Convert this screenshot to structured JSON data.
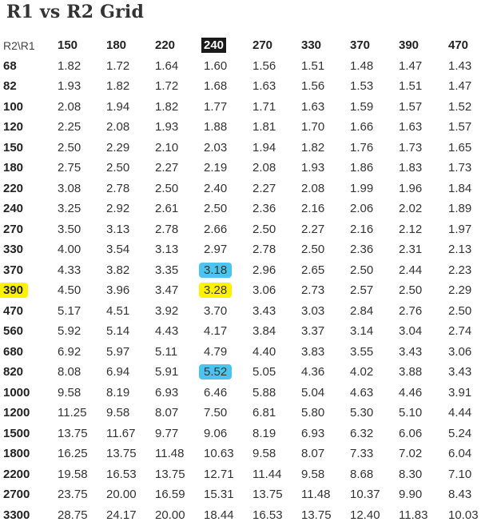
{
  "title": "R1 vs R2 Grid",
  "corner_label": "R2\\R1",
  "columns": [
    "150",
    "180",
    "220",
    "240",
    "270",
    "330",
    "370",
    "390",
    "470"
  ],
  "highlight_colors": {
    "black": "#1a1a1a",
    "yellow": "#fff200",
    "blue": "#4dc3f0"
  },
  "rows": [
    {
      "r2": "68",
      "values": [
        "1.82",
        "1.72",
        "1.64",
        "1.60",
        "1.56",
        "1.51",
        "1.48",
        "1.47",
        "1.43"
      ]
    },
    {
      "r2": "82",
      "values": [
        "1.93",
        "1.82",
        "1.72",
        "1.68",
        "1.63",
        "1.56",
        "1.53",
        "1.51",
        "1.47"
      ]
    },
    {
      "r2": "100",
      "values": [
        "2.08",
        "1.94",
        "1.82",
        "1.77",
        "1.71",
        "1.63",
        "1.59",
        "1.57",
        "1.52"
      ]
    },
    {
      "r2": "120",
      "values": [
        "2.25",
        "2.08",
        "1.93",
        "1.88",
        "1.81",
        "1.70",
        "1.66",
        "1.63",
        "1.57"
      ]
    },
    {
      "r2": "150",
      "values": [
        "2.50",
        "2.29",
        "2.10",
        "2.03",
        "1.94",
        "1.82",
        "1.76",
        "1.73",
        "1.65"
      ]
    },
    {
      "r2": "180",
      "values": [
        "2.75",
        "2.50",
        "2.27",
        "2.19",
        "2.08",
        "1.93",
        "1.86",
        "1.83",
        "1.73"
      ]
    },
    {
      "r2": "220",
      "values": [
        "3.08",
        "2.78",
        "2.50",
        "2.40",
        "2.27",
        "2.08",
        "1.99",
        "1.96",
        "1.84"
      ]
    },
    {
      "r2": "240",
      "values": [
        "3.25",
        "2.92",
        "2.61",
        "2.50",
        "2.36",
        "2.16",
        "2.06",
        "2.02",
        "1.89"
      ]
    },
    {
      "r2": "270",
      "values": [
        "3.50",
        "3.13",
        "2.78",
        "2.66",
        "2.50",
        "2.27",
        "2.16",
        "2.12",
        "1.97"
      ]
    },
    {
      "r2": "330",
      "values": [
        "4.00",
        "3.54",
        "3.13",
        "2.97",
        "2.78",
        "2.50",
        "2.36",
        "2.31",
        "2.13"
      ]
    },
    {
      "r2": "370",
      "values": [
        "4.33",
        "3.82",
        "3.35",
        "3.18",
        "2.96",
        "2.65",
        "2.50",
        "2.44",
        "2.23"
      ]
    },
    {
      "r2": "390",
      "values": [
        "4.50",
        "3.96",
        "3.47",
        "3.28",
        "3.06",
        "2.73",
        "2.57",
        "2.50",
        "2.29"
      ]
    },
    {
      "r2": "470",
      "values": [
        "5.17",
        "4.51",
        "3.92",
        "3.70",
        "3.43",
        "3.03",
        "2.84",
        "2.76",
        "2.50"
      ]
    },
    {
      "r2": "560",
      "values": [
        "5.92",
        "5.14",
        "4.43",
        "4.17",
        "3.84",
        "3.37",
        "3.14",
        "3.04",
        "2.74"
      ]
    },
    {
      "r2": "680",
      "values": [
        "6.92",
        "5.97",
        "5.11",
        "4.79",
        "4.40",
        "3.83",
        "3.55",
        "3.43",
        "3.06"
      ]
    },
    {
      "r2": "820",
      "values": [
        "8.08",
        "6.94",
        "5.91",
        "5.52",
        "5.05",
        "4.36",
        "4.02",
        "3.88",
        "3.43"
      ]
    },
    {
      "r2": "1000",
      "values": [
        "9.58",
        "8.19",
        "6.93",
        "6.46",
        "5.88",
        "5.04",
        "4.63",
        "4.46",
        "3.91"
      ]
    },
    {
      "r2": "1200",
      "values": [
        "11.25",
        "9.58",
        "8.07",
        "7.50",
        "6.81",
        "5.80",
        "5.30",
        "5.10",
        "4.44"
      ]
    },
    {
      "r2": "1500",
      "values": [
        "13.75",
        "11.67",
        "9.77",
        "9.06",
        "8.19",
        "6.93",
        "6.32",
        "6.06",
        "5.24"
      ]
    },
    {
      "r2": "1800",
      "values": [
        "16.25",
        "13.75",
        "11.48",
        "10.63",
        "9.58",
        "8.07",
        "7.33",
        "7.02",
        "6.04"
      ]
    },
    {
      "r2": "2200",
      "values": [
        "19.58",
        "16.53",
        "13.75",
        "12.71",
        "11.44",
        "9.58",
        "8.68",
        "8.30",
        "7.10"
      ]
    },
    {
      "r2": "2700",
      "values": [
        "23.75",
        "20.00",
        "16.59",
        "15.31",
        "13.75",
        "11.48",
        "10.37",
        "9.90",
        "8.43"
      ]
    },
    {
      "r2": "3300",
      "values": [
        "28.75",
        "24.17",
        "20.00",
        "18.44",
        "16.53",
        "13.75",
        "12.40",
        "11.83",
        "10.03"
      ]
    }
  ],
  "highlights": {
    "column_header": {
      "col": 3,
      "color": "black"
    },
    "row_header": {
      "row": 11,
      "color": "yellow"
    },
    "cells": [
      {
        "row": 10,
        "col": 3,
        "color": "blue"
      },
      {
        "row": 11,
        "col": 3,
        "color": "yellow"
      },
      {
        "row": 15,
        "col": 3,
        "color": "blue"
      }
    ]
  }
}
